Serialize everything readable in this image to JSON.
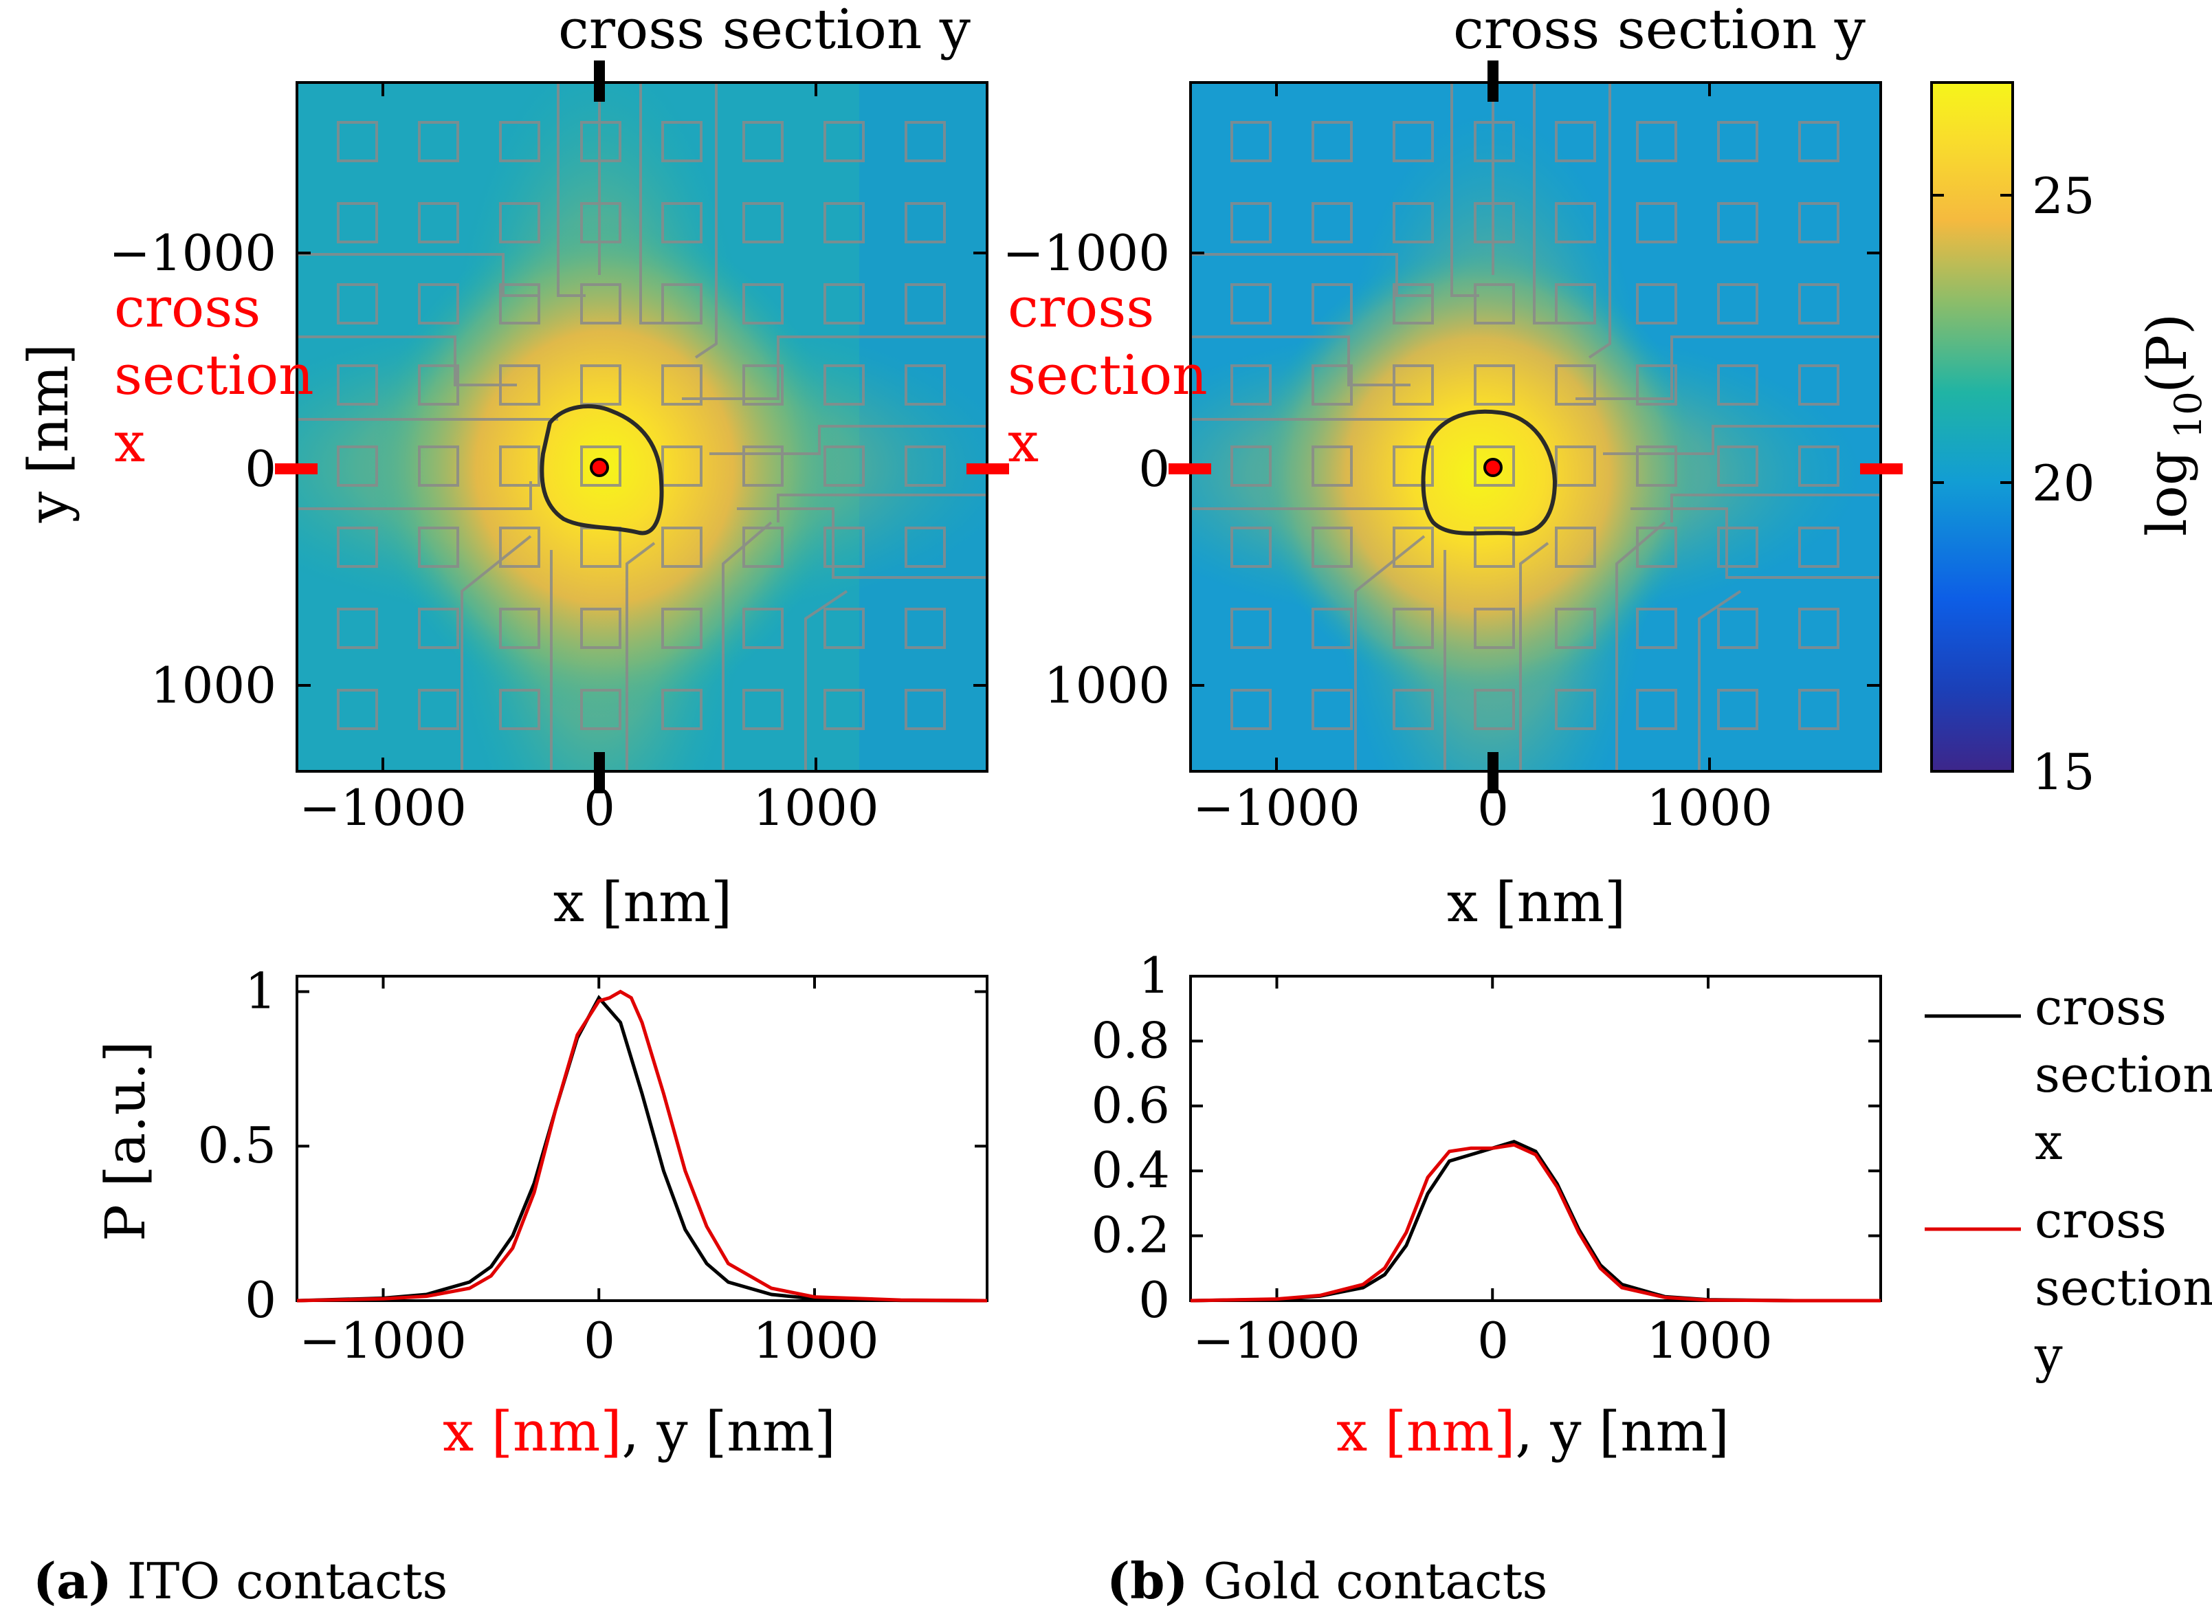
{
  "colors": {
    "ito_line_x": "#000000",
    "ito_line_y": "#e00000",
    "accent_red": "#ff0000",
    "contact_grid": "#8a8a8a",
    "colormap": [
      "#3d268a",
      "#0d5ee6",
      "#129dd4",
      "#20b4a4",
      "#8bbd6a",
      "#f5ba3f",
      "#f9de2b",
      "#f6f51a"
    ]
  },
  "heatmaps": [
    {
      "id": "ito",
      "xticks": [
        "−1000",
        "0",
        "1000"
      ],
      "yticks": [
        "−1000",
        "0",
        "1000"
      ],
      "xlabel": "x [nm]",
      "ylabel": "y [nm]",
      "marker_top": "cross section y",
      "marker_left": [
        "cross",
        "section",
        "x"
      ],
      "background_level": 20.6,
      "peak_level": 26.5
    },
    {
      "id": "gold",
      "xticks": [
        "−1000",
        "0",
        "1000"
      ],
      "yticks": [
        "−1000",
        "0",
        "1000"
      ],
      "xlabel": "x [nm]",
      "marker_top": "cross section y",
      "marker_left": [
        "cross",
        "section",
        "x"
      ],
      "background_level": 20.0,
      "peak_level": 26.2
    }
  ],
  "colorbar": {
    "label": "log10(P)",
    "label_main": "log",
    "label_sub": "10",
    "label_paren": "(P)",
    "ticks": [
      "25",
      "20",
      "15"
    ],
    "range": [
      15,
      27
    ]
  },
  "chart_data": [
    {
      "type": "line",
      "panel": "ITO contacts",
      "xlim": [
        -1400,
        1800
      ],
      "ylim": [
        0,
        1.05
      ],
      "xticks": [
        "−1000",
        "0",
        "1000"
      ],
      "yticks": [
        "0",
        "0.5",
        "1"
      ],
      "ylabel": "P [a.u.]",
      "xlabel_red": "x [nm]",
      "xlabel_black": ", y [nm]",
      "series": [
        {
          "name": "cross section x",
          "x": [
            -1400,
            -1000,
            -800,
            -600,
            -500,
            -400,
            -300,
            -200,
            -100,
            0,
            100,
            200,
            300,
            400,
            500,
            600,
            800,
            1000,
            1400,
            1800
          ],
          "values": [
            0,
            0.008,
            0.02,
            0.06,
            0.11,
            0.21,
            0.38,
            0.62,
            0.85,
            0.98,
            0.9,
            0.67,
            0.42,
            0.23,
            0.12,
            0.06,
            0.02,
            0.006,
            0.001,
            0
          ]
        },
        {
          "name": "cross section y",
          "x": [
            -1400,
            -1000,
            -800,
            -600,
            -500,
            -400,
            -300,
            -200,
            -100,
            0,
            50,
            100,
            150,
            200,
            300,
            400,
            500,
            600,
            800,
            1000,
            1400,
            1800
          ],
          "values": [
            0,
            0.006,
            0.014,
            0.04,
            0.08,
            0.17,
            0.35,
            0.62,
            0.86,
            0.97,
            0.98,
            1.0,
            0.98,
            0.9,
            0.67,
            0.42,
            0.24,
            0.12,
            0.04,
            0.012,
            0.002,
            0
          ]
        }
      ]
    },
    {
      "type": "line",
      "panel": "Gold contacts",
      "xlim": [
        -1400,
        1800
      ],
      "ylim": [
        0,
        1
      ],
      "xticks": [
        "−1000",
        "0",
        "1000"
      ],
      "yticks": [
        "0",
        "0.2",
        "0.4",
        "0.6",
        "0.8",
        "1"
      ],
      "xlabel_red": "x [nm]",
      "xlabel_black": ", y [nm]",
      "series": [
        {
          "name": "cross section x",
          "x": [
            -1400,
            -1000,
            -800,
            -600,
            -500,
            -400,
            -300,
            -200,
            -100,
            0,
            100,
            200,
            300,
            400,
            500,
            600,
            800,
            1000,
            1400,
            1800
          ],
          "values": [
            0,
            0.004,
            0.014,
            0.04,
            0.08,
            0.17,
            0.33,
            0.43,
            0.45,
            0.47,
            0.49,
            0.46,
            0.36,
            0.22,
            0.11,
            0.05,
            0.012,
            0.003,
            0,
            0
          ]
        },
        {
          "name": "cross section y",
          "x": [
            -1400,
            -1000,
            -800,
            -600,
            -500,
            -400,
            -300,
            -200,
            -100,
            0,
            100,
            200,
            300,
            400,
            500,
            600,
            800,
            1000,
            1400,
            1800
          ],
          "values": [
            0,
            0.005,
            0.016,
            0.05,
            0.1,
            0.21,
            0.38,
            0.46,
            0.47,
            0.47,
            0.48,
            0.45,
            0.35,
            0.21,
            0.1,
            0.04,
            0.01,
            0.002,
            0,
            0
          ]
        }
      ]
    }
  ],
  "legend": {
    "items": [
      {
        "lines": [
          "cross",
          "section",
          "x"
        ]
      },
      {
        "lines": [
          "cross",
          "section",
          "y"
        ]
      }
    ]
  },
  "captions": [
    {
      "tag": "(a)",
      "text": "ITO contacts"
    },
    {
      "tag": "(b)",
      "text": "Gold contacts"
    }
  ]
}
